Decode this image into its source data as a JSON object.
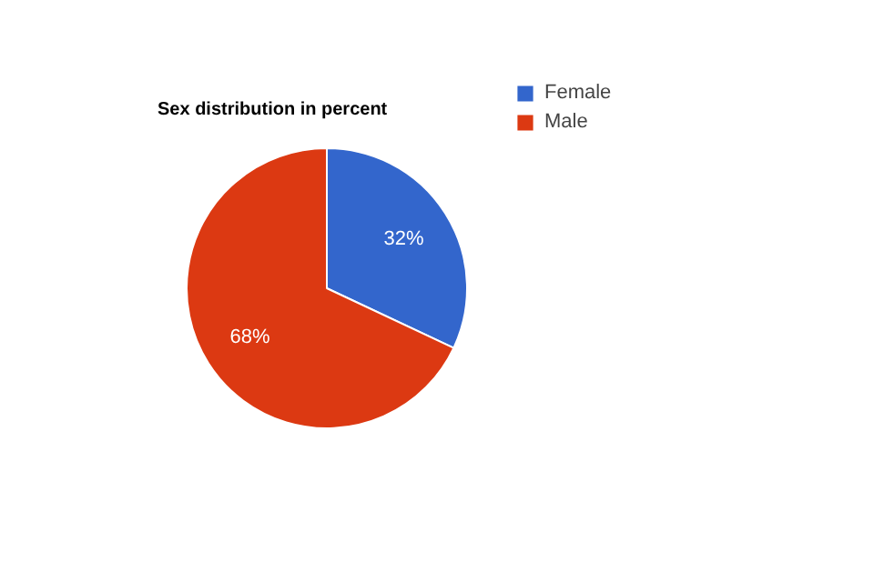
{
  "chart_data": {
    "type": "pie",
    "title": "Sex distribution in percent",
    "categories": [
      "Female",
      "Male"
    ],
    "values": [
      32,
      68
    ],
    "colors": [
      "#3366cc",
      "#dc3912"
    ],
    "value_labels": [
      "32%",
      "68%"
    ],
    "legend": "right"
  }
}
